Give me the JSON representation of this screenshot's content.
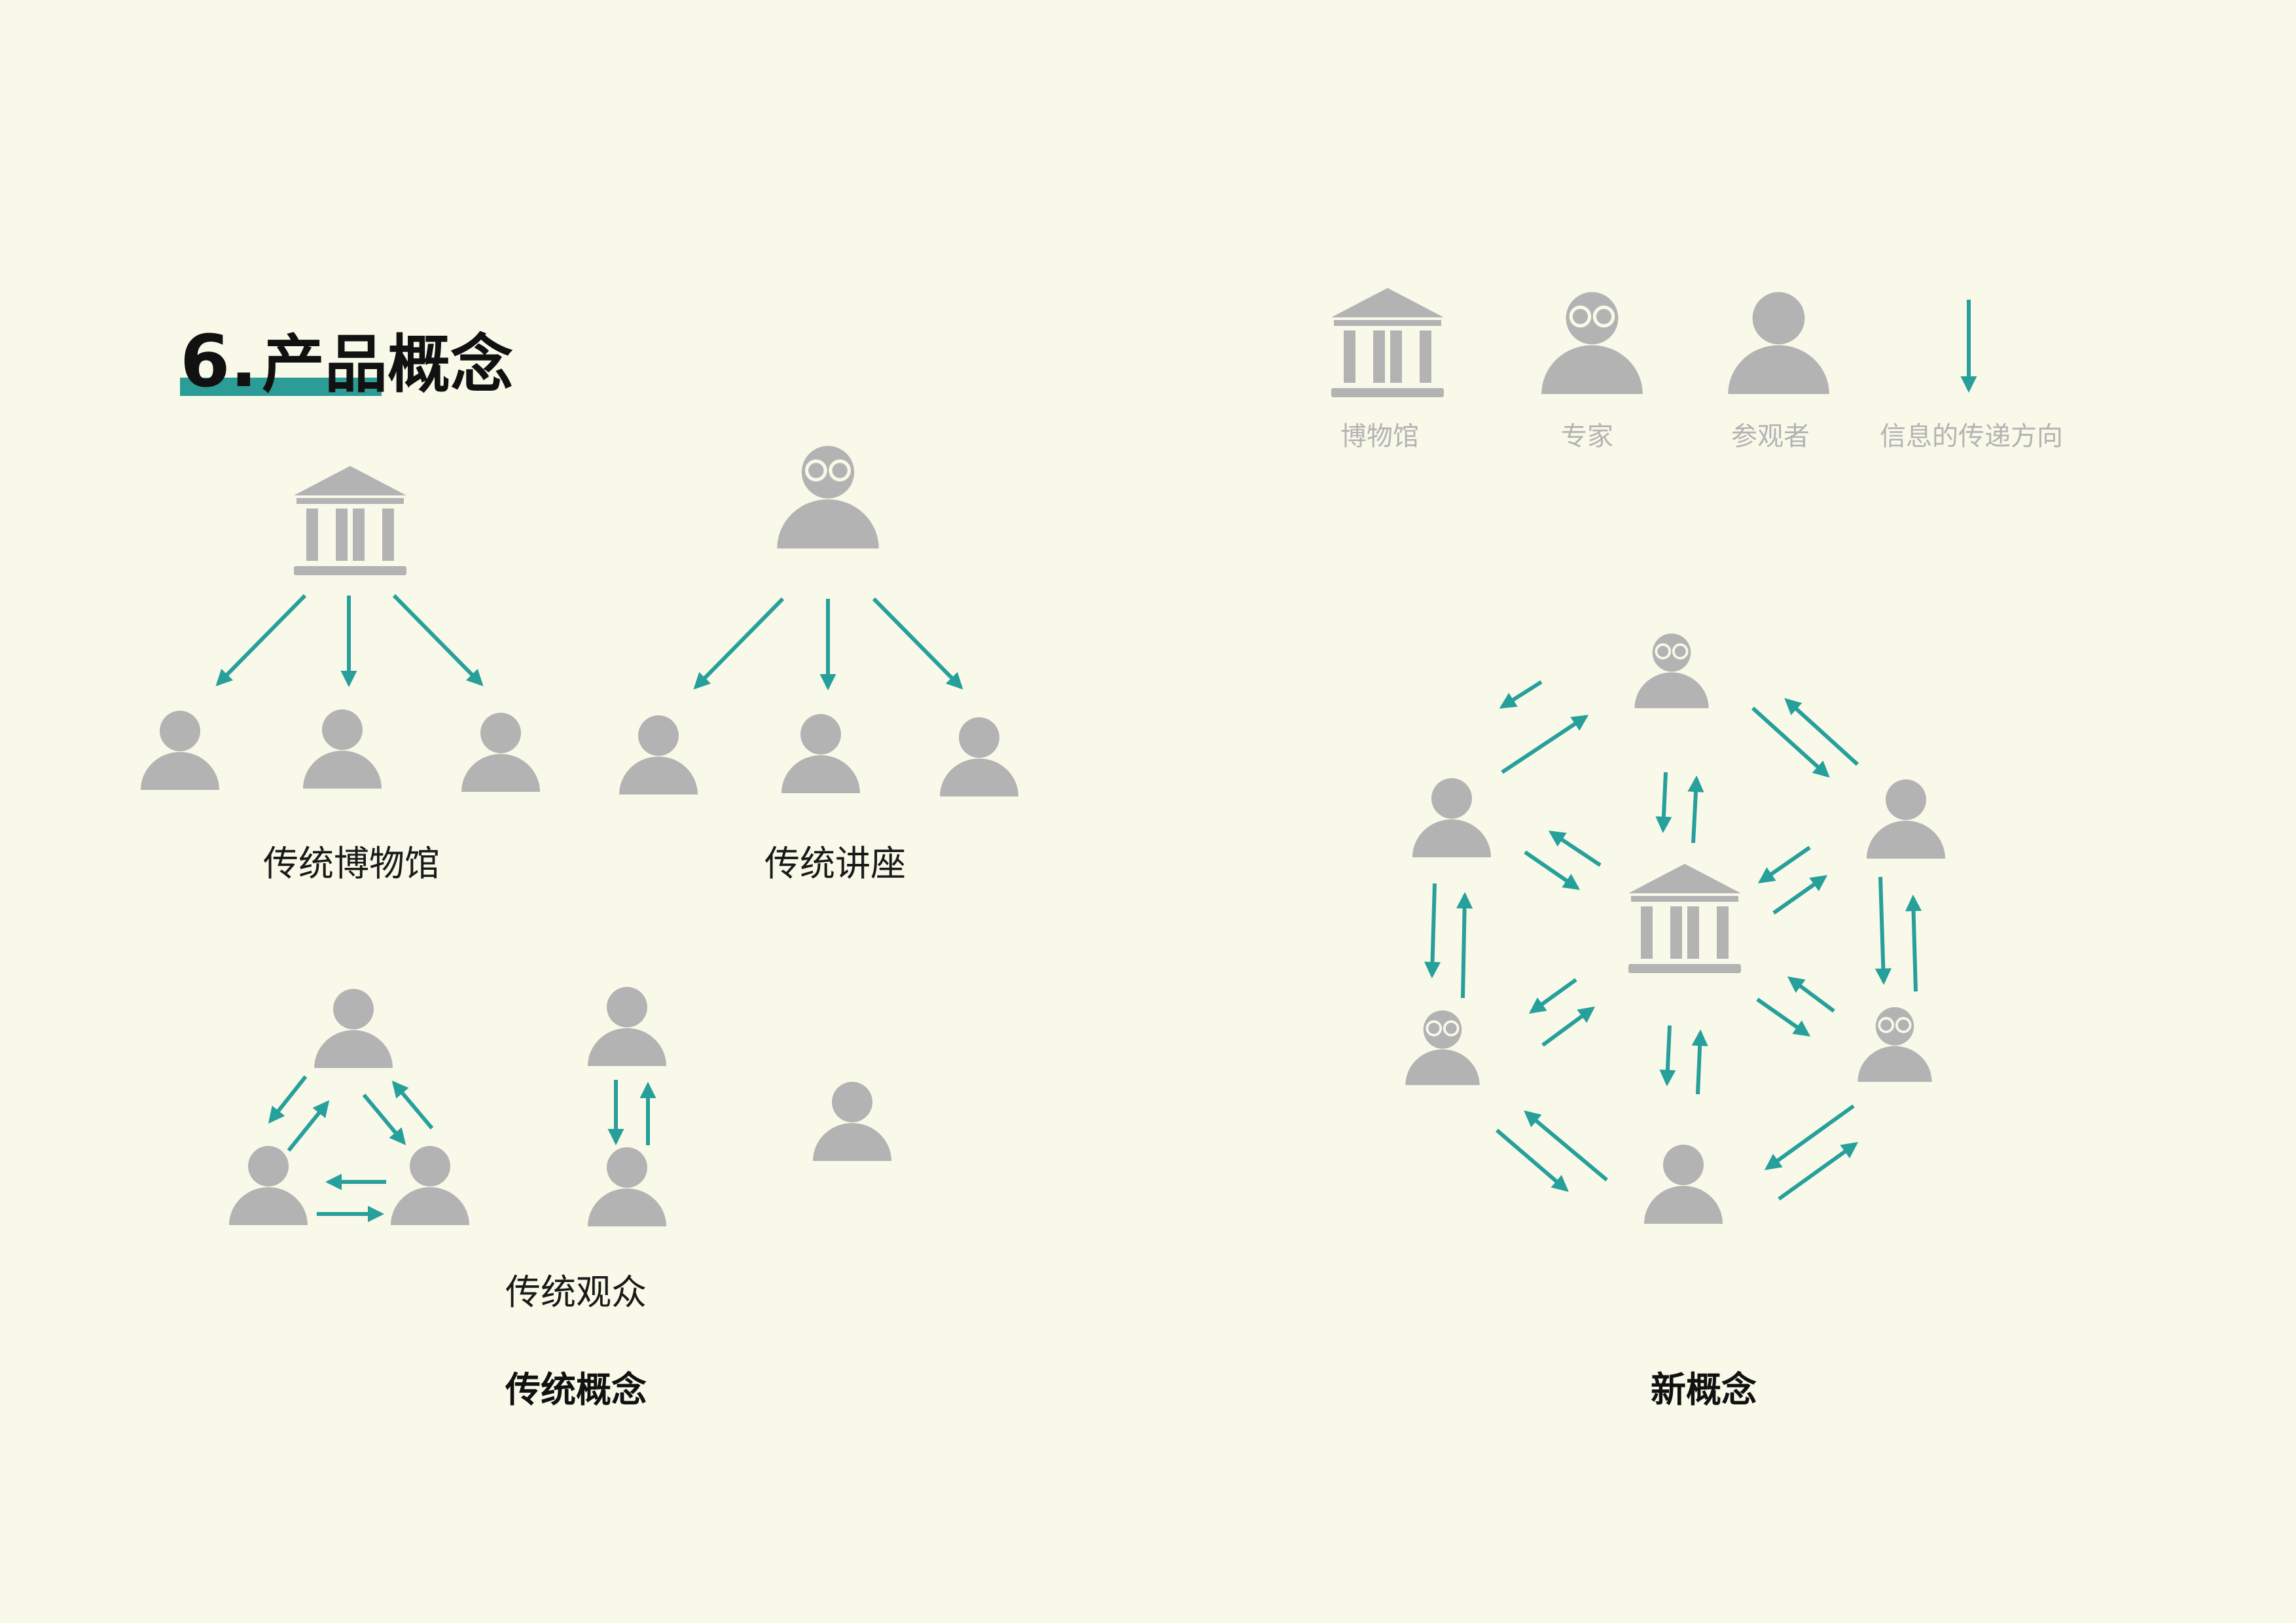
{
  "heading": {
    "number": "6.",
    "title": "产品概念"
  },
  "colors": {
    "background": "#f9f9ea",
    "icon_gray": "#b3b3b3",
    "arrow_teal": "#27a09b",
    "accent_bar": "#2c9c97",
    "text_dark": "#1a1a1a",
    "legend_text": "#b3b3b3"
  },
  "legend": [
    {
      "icon": "museum-icon",
      "label": "博物馆"
    },
    {
      "icon": "expert-icon",
      "label": "专家"
    },
    {
      "icon": "visitor-icon",
      "label": "参观者"
    },
    {
      "icon": "arrow-down-icon",
      "label": "信息的传递方向"
    }
  ],
  "traditional": {
    "section_label": "传统概念",
    "museum_label": "传统博物馆",
    "lecture_label": "传统讲座",
    "audience_label": "传统观众"
  },
  "new_concept": {
    "section_label": "新概念"
  }
}
